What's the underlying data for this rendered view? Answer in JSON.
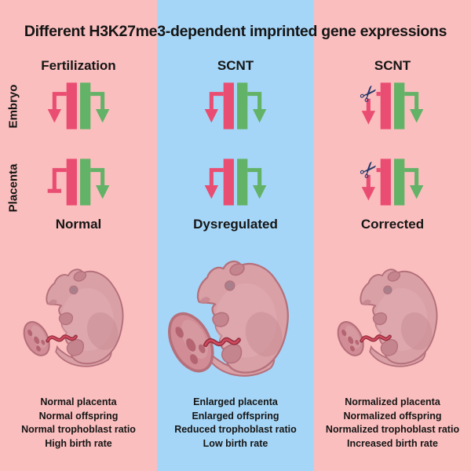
{
  "title": "Different H3K27me3-dependent imprinted gene expressions",
  "row_labels": {
    "embryo": "Embryo",
    "placenta": "Placenta"
  },
  "columns": [
    {
      "header": "Fertilization",
      "status": "Normal",
      "embryo_icon": "expressed",
      "placenta_icon": "repressed",
      "mouse": "normal",
      "notes": [
        "Normal placenta",
        "Normal offspring",
        "Normal trophoblast ratio",
        "High birth rate"
      ]
    },
    {
      "header": "SCNT",
      "status": "Dysregulated",
      "embryo_icon": "expressed",
      "placenta_icon": "expressed",
      "mouse": "enlarged",
      "notes": [
        "Enlarged placenta",
        "Enlarged offspring",
        "Reduced trophoblast ratio",
        "Low birth rate"
      ]
    },
    {
      "header": "SCNT",
      "status": "Corrected",
      "embryo_icon": "cut",
      "placenta_icon": "cut",
      "mouse": "normal",
      "notes": [
        "Normalized placenta",
        "Normalized offspring",
        "Normalized trophoblast ratio",
        "Increased birth rate"
      ]
    }
  ],
  "colors": {
    "background_pink": "#fbbebe",
    "scnt_panel_blue": "#a6d6f7",
    "text_color": "#151515",
    "maternal_pink": "#ea4d72",
    "paternal_green": "#62b267",
    "scissors_navy": "#24386b",
    "mouse_body": "#d9a0a6",
    "mouse_belly_light": "#e2b0b5",
    "mouse_shade": "#c5858e",
    "mouse_outline": "#b5707b",
    "mouse_eye": "#a87f8a",
    "placenta_fill": "#d18c95",
    "placenta_spot": "#b05f6c",
    "cord_outer": "#8e2b3c",
    "cord_inner": "#d14a5e"
  }
}
